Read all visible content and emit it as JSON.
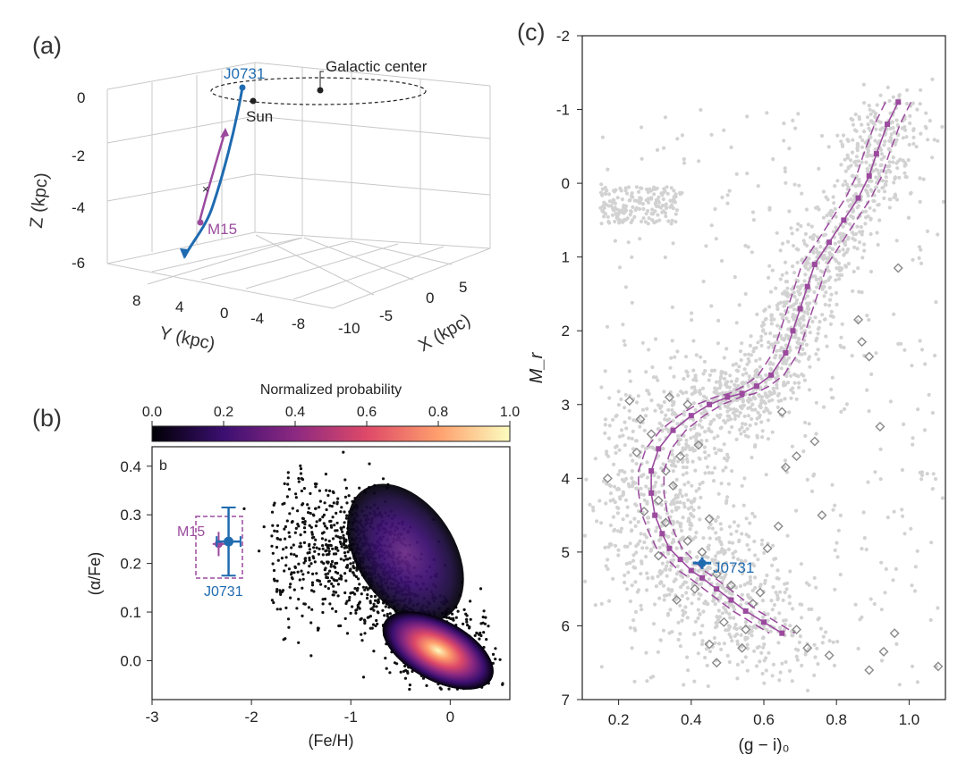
{
  "panels": {
    "a": {
      "label": "(a)",
      "z_title": "Z (kpc)",
      "y_title": "Y (kpc)",
      "x_title": "X (kpc)",
      "z_ticks": [
        "0",
        "-2",
        "-4",
        "-6"
      ],
      "y_ticks": [
        "8",
        "4",
        "0",
        "-4",
        "-8"
      ],
      "x_ticks": [
        "-10",
        "-5",
        "0",
        "5"
      ],
      "annotations": {
        "galactic_center": "Galactic center",
        "sun": "Sun",
        "star": "J0731",
        "cluster": "M15"
      }
    },
    "b": {
      "label": "(b)",
      "inner_label": "b",
      "colorbar_title": "Normalized probability",
      "colorbar_ticks": [
        "0.0",
        "0.2",
        "0.4",
        "0.6",
        "0.8",
        "1.0"
      ],
      "annotations": {
        "cluster": "M15",
        "star": "J0731"
      }
    },
    "c": {
      "label": "(c)",
      "annotations": {
        "star": "J0731"
      }
    }
  },
  "colors": {
    "star": "#1f6bb0",
    "cluster": "#9b4a9e",
    "field": "#d0d0d0",
    "members": "#888888"
  },
  "chart_data": [
    {
      "type": "line",
      "panel": "a",
      "projection": "3d",
      "x_title": "X (kpc)",
      "y_title": "Y (kpc)",
      "z_title": "Z (kpc)",
      "xlim": [
        -10,
        5
      ],
      "ylim": [
        -8,
        8
      ],
      "zlim": [
        -6,
        0
      ],
      "series": [
        {
          "name": "J0731",
          "points": [
            [
              -0.6,
              1.2,
              0.2
            ],
            [
              -1.2,
              1.9,
              -1.2
            ],
            [
              -1.8,
              2.8,
              -2.6
            ],
            [
              -2.4,
              3.4,
              -4.0
            ],
            [
              -2.9,
              4.0,
              -5.8
            ]
          ]
        },
        {
          "name": "M15",
          "points": [
            [
              -1.0,
              1.6,
              -1.0
            ],
            [
              -1.5,
              2.2,
              -2.3
            ],
            [
              -1.9,
              2.9,
              -3.4
            ],
            [
              -2.1,
              3.2,
              -4.3
            ]
          ]
        }
      ],
      "markers": [
        {
          "name": "Galactic center",
          "x": 0,
          "y": 0,
          "z": 0
        },
        {
          "name": "Sun",
          "x": -8.2,
          "y": 0,
          "z": 0
        }
      ]
    },
    {
      "type": "heatmap",
      "panel": "b",
      "xlabel": "(Fe/H)",
      "ylabel": "(α/Fe)",
      "xlim": [
        -3,
        0.6
      ],
      "ylim": [
        -0.08,
        0.44
      ],
      "x_ticks": [
        -3,
        -2,
        -1,
        0
      ],
      "y_ticks": [
        0.0,
        0.1,
        0.2,
        0.3,
        0.4
      ],
      "colorbar": {
        "title": "Normalized probability",
        "range": [
          0,
          1
        ]
      },
      "density_peaks": [
        {
          "fe_h": -0.05,
          "alpha_fe": 0.01,
          "level": 1.0
        },
        {
          "fe_h": -0.45,
          "alpha_fe": 0.24,
          "level": 0.3
        }
      ],
      "points": [
        {
          "name": "J0731",
          "fe_h": -2.23,
          "alpha_fe": 0.245,
          "fe_h_err": 0.12,
          "alpha_fe_err": 0.07
        },
        {
          "name": "M15",
          "fe_h": -2.33,
          "alpha_fe": 0.24,
          "fe_h_err": 0.06,
          "alpha_fe_err": 0.025
        }
      ]
    },
    {
      "type": "scatter",
      "panel": "c",
      "xlabel": "(g − i)₀",
      "ylabel": "M_r",
      "xlim": [
        0.1,
        1.1
      ],
      "ylim": [
        7,
        -2
      ],
      "x_ticks": [
        0.2,
        0.4,
        0.6,
        0.8,
        1.0
      ],
      "y_ticks": [
        -2,
        -1,
        0,
        1,
        2,
        3,
        4,
        5,
        6,
        7
      ],
      "isochrone": {
        "name": "M15",
        "g_i": [
          0.97,
          0.94,
          0.91,
          0.89,
          0.86,
          0.82,
          0.78,
          0.74,
          0.72,
          0.7,
          0.68,
          0.66,
          0.62,
          0.58,
          0.54,
          0.5,
          0.45,
          0.4,
          0.35,
          0.31,
          0.29,
          0.29,
          0.3,
          0.32,
          0.34,
          0.37,
          0.4,
          0.43,
          0.47,
          0.51,
          0.55,
          0.6,
          0.65
        ],
        "m_r": [
          -1.1,
          -0.8,
          -0.4,
          -0.1,
          0.2,
          0.5,
          0.8,
          1.1,
          1.4,
          1.7,
          2.0,
          2.3,
          2.6,
          2.75,
          2.85,
          2.9,
          3.0,
          3.15,
          3.35,
          3.6,
          3.9,
          4.2,
          4.5,
          4.75,
          4.95,
          5.1,
          5.25,
          5.35,
          5.5,
          5.65,
          5.8,
          5.95,
          6.1
        ]
      },
      "isochrone_spread": 0.035,
      "members": [
        {
          "g_i": 0.97,
          "m_r": 1.15
        },
        {
          "g_i": 0.86,
          "m_r": 1.85
        },
        {
          "g_i": 0.87,
          "m_r": 2.15
        },
        {
          "g_i": 0.89,
          "m_r": 2.35
        },
        {
          "g_i": 0.92,
          "m_r": 3.3
        },
        {
          "g_i": 0.74,
          "m_r": 3.5
        },
        {
          "g_i": 0.69,
          "m_r": 3.7
        },
        {
          "g_i": 0.65,
          "m_r": 3.1
        },
        {
          "g_i": 0.66,
          "m_r": 3.85
        },
        {
          "g_i": 0.76,
          "m_r": 4.5
        },
        {
          "g_i": 0.64,
          "m_r": 4.65
        },
        {
          "g_i": 0.59,
          "m_r": 5.55
        },
        {
          "g_i": 0.61,
          "m_r": 4.95
        },
        {
          "g_i": 0.23,
          "m_r": 2.95
        },
        {
          "g_i": 0.26,
          "m_r": 3.2
        },
        {
          "g_i": 0.34,
          "m_r": 2.9
        },
        {
          "g_i": 0.39,
          "m_r": 3.0
        },
        {
          "g_i": 0.42,
          "m_r": 3.55
        },
        {
          "g_i": 0.27,
          "m_r": 4.45
        },
        {
          "g_i": 0.25,
          "m_r": 3.65
        },
        {
          "g_i": 0.17,
          "m_r": 4.0
        },
        {
          "g_i": 0.31,
          "m_r": 5.05
        },
        {
          "g_i": 0.36,
          "m_r": 5.65
        },
        {
          "g_i": 0.45,
          "m_r": 6.25
        },
        {
          "g_i": 0.47,
          "m_r": 6.5
        },
        {
          "g_i": 0.54,
          "m_r": 6.3
        },
        {
          "g_i": 0.69,
          "m_r": 6.05
        },
        {
          "g_i": 0.72,
          "m_r": 6.3
        },
        {
          "g_i": 0.78,
          "m_r": 6.4
        },
        {
          "g_i": 0.93,
          "m_r": 6.35
        },
        {
          "g_i": 0.96,
          "m_r": 6.1
        },
        {
          "g_i": 0.89,
          "m_r": 6.6
        },
        {
          "g_i": 1.08,
          "m_r": 6.55
        },
        {
          "g_i": 0.31,
          "m_r": 4.3
        },
        {
          "g_i": 0.35,
          "m_r": 4.1
        },
        {
          "g_i": 0.33,
          "m_r": 4.6
        },
        {
          "g_i": 0.39,
          "m_r": 4.85
        },
        {
          "g_i": 0.43,
          "m_r": 5.0
        },
        {
          "g_i": 0.47,
          "m_r": 5.3
        },
        {
          "g_i": 0.51,
          "m_r": 5.45
        },
        {
          "g_i": 0.57,
          "m_r": 5.7
        },
        {
          "g_i": 0.41,
          "m_r": 5.5
        },
        {
          "g_i": 0.49,
          "m_r": 5.95
        },
        {
          "g_i": 0.55,
          "m_r": 6.05
        },
        {
          "g_i": 0.37,
          "m_r": 3.7
        },
        {
          "g_i": 0.29,
          "m_r": 3.4
        },
        {
          "g_i": 0.33,
          "m_r": 3.9
        },
        {
          "g_i": 0.45,
          "m_r": 4.55
        }
      ],
      "star": {
        "name": "J0731",
        "g_i": 0.43,
        "m_r": 5.15,
        "g_i_err": 0.025,
        "m_r_err": 0.08
      }
    }
  ]
}
